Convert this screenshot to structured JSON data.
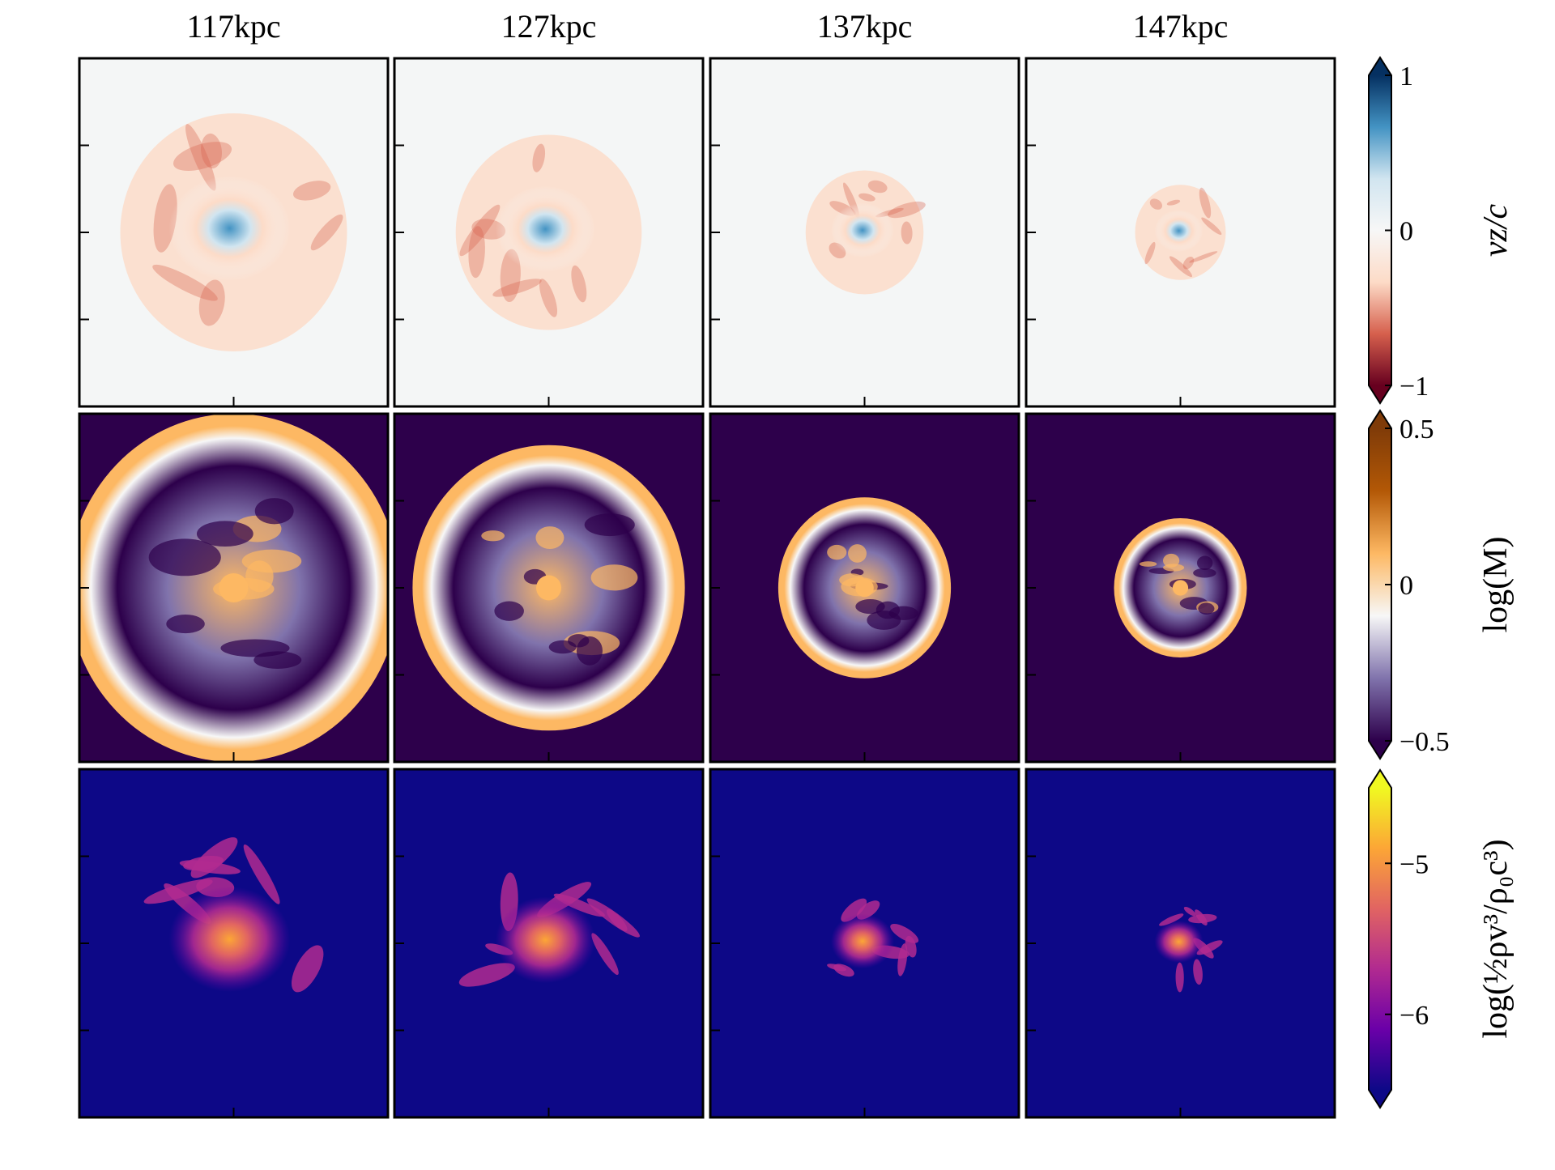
{
  "column_titles": [
    "117kpc",
    "127kpc",
    "137kpc",
    "147kpc"
  ],
  "chart_data": [
    {
      "type": "image",
      "colorbar_label": "vz/c",
      "colormap": [
        "#67001f",
        "#d6604d",
        "#fddbc7",
        "#f7f7f7",
        "#d1e5f0",
        "#4393c3",
        "#053061"
      ],
      "clim": [
        -1,
        1
      ],
      "cticks": [
        {
          "value": -1,
          "label": "−1"
        },
        0,
        1
      ],
      "extend": "both"
    },
    {
      "type": "image",
      "colorbar_label": "log(M)",
      "colormap": [
        "#2d004b",
        "#8073ac",
        "#f7f7f7",
        "#fdb863",
        "#b35806",
        "#7f3b08"
      ],
      "clim": [
        -0.5,
        0.5
      ],
      "cticks": [
        {
          "value": -0.5,
          "label": "−0.5"
        },
        0,
        0.5
      ],
      "extend": "both"
    },
    {
      "type": "image",
      "colorbar_label": "log(½ρv³/ρ₀c³)",
      "colormap": [
        "#0d0887",
        "#6a00a8",
        "#b12a90",
        "#e16462",
        "#fca636",
        "#f0f921"
      ],
      "clim": [
        -6.5,
        -4.5
      ],
      "cticks": [
        {
          "value": -6,
          "label": "−6"
        },
        {
          "value": -5,
          "label": "−5"
        }
      ],
      "extend": "both"
    }
  ]
}
